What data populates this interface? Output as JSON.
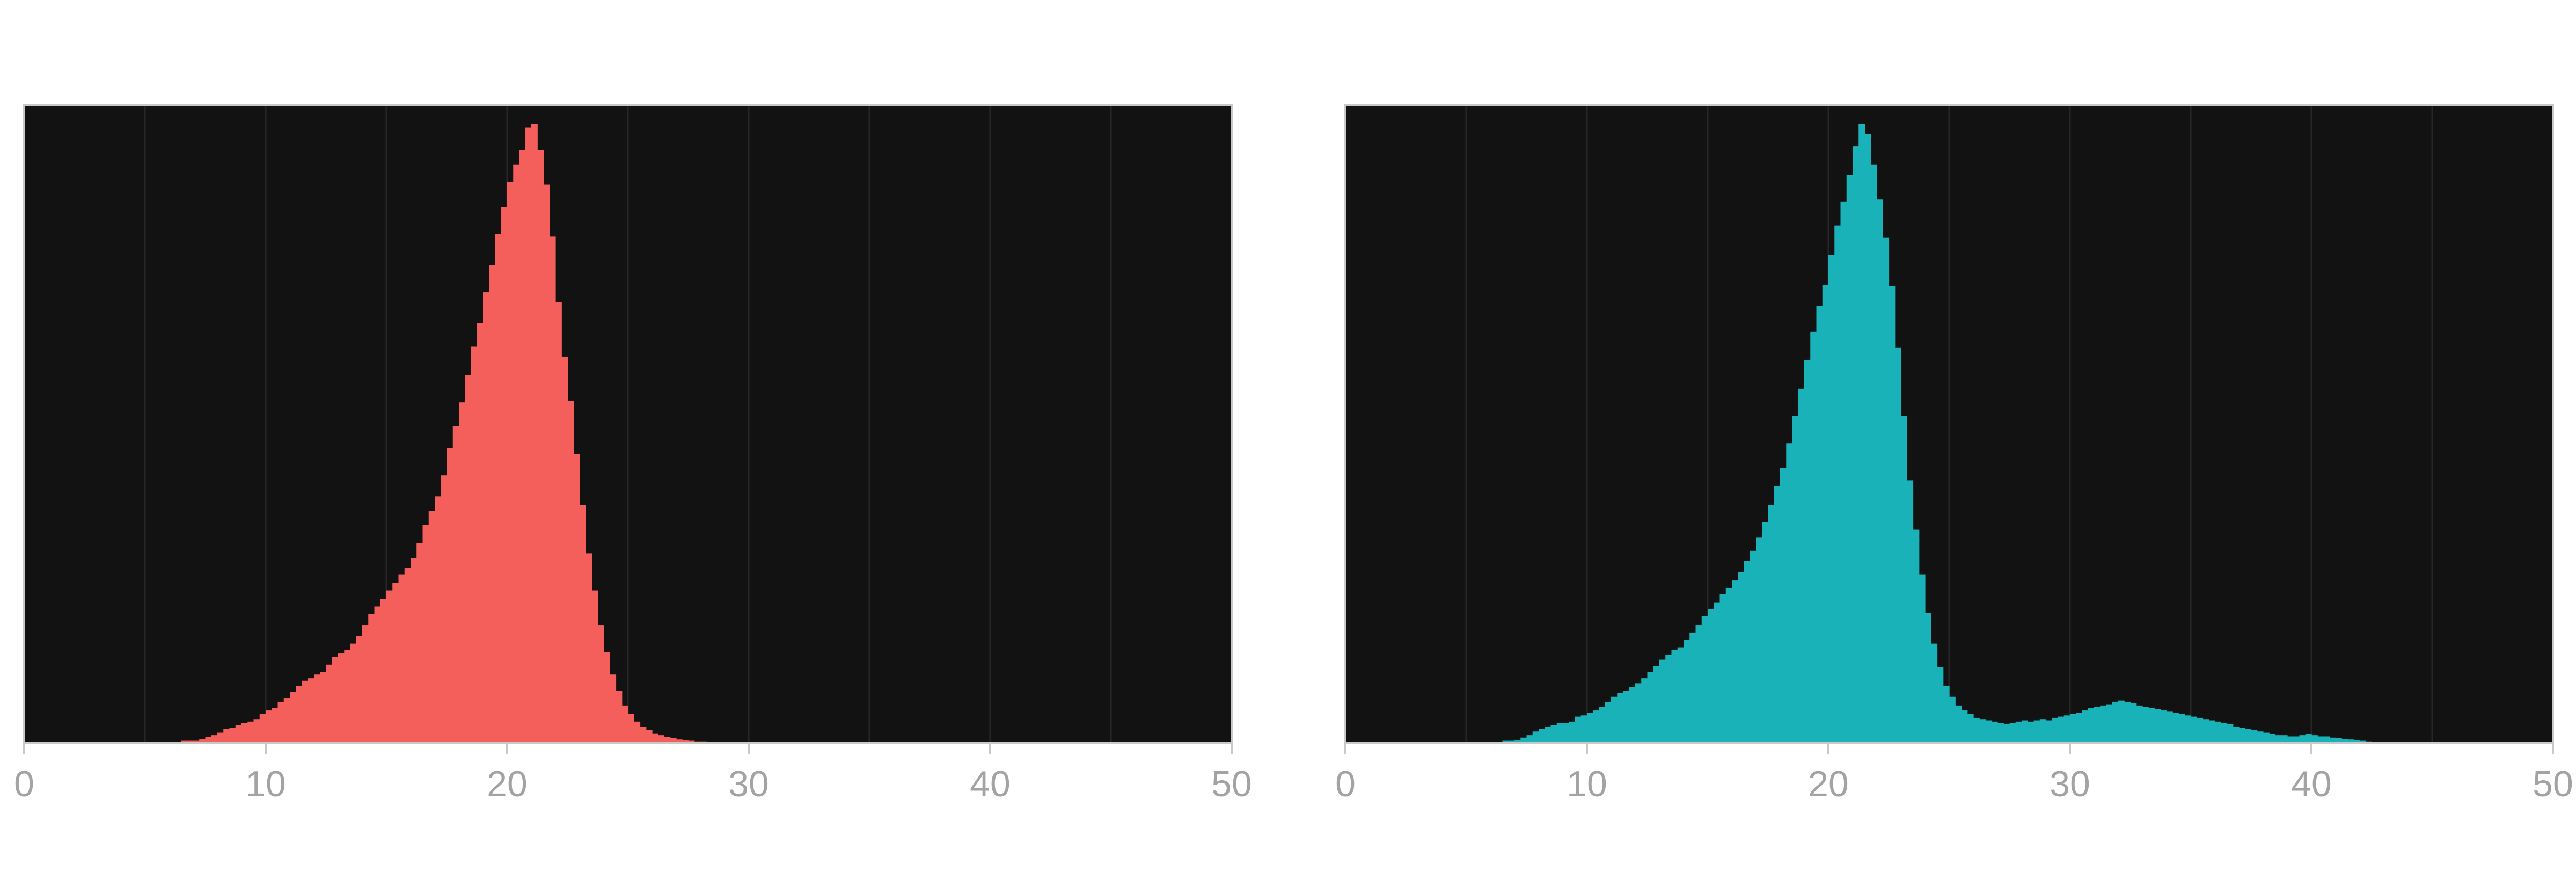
{
  "colors": {
    "panel_background": "#121212",
    "panel_border": "#c9c9c9",
    "grid": "#262626",
    "tick_label": "#a3a3a3",
    "figure_background": "#ffffff"
  },
  "chart_data": [
    {
      "type": "histogram",
      "color": "#f45f5c",
      "xlim": [
        0,
        50
      ],
      "x_ticks": [
        "0",
        "10",
        "20",
        "30",
        "40",
        "50"
      ],
      "grid": "vertical lines every 5",
      "bin_width": 0.25,
      "max_count": 1.0,
      "bins": [
        [
          6.5,
          0.003
        ],
        [
          6.75,
          0.003
        ],
        [
          7.0,
          0.003
        ],
        [
          7.25,
          0.006
        ],
        [
          7.5,
          0.009
        ],
        [
          7.75,
          0.012
        ],
        [
          8.0,
          0.016
        ],
        [
          8.25,
          0.022
        ],
        [
          8.5,
          0.024
        ],
        [
          8.75,
          0.028
        ],
        [
          9.0,
          0.032
        ],
        [
          9.25,
          0.034
        ],
        [
          9.5,
          0.038
        ],
        [
          9.75,
          0.046
        ],
        [
          10.0,
          0.052
        ],
        [
          10.25,
          0.056
        ],
        [
          10.5,
          0.066
        ],
        [
          10.75,
          0.072
        ],
        [
          11.0,
          0.082
        ],
        [
          11.25,
          0.092
        ],
        [
          11.5,
          0.1
        ],
        [
          11.75,
          0.104
        ],
        [
          12.0,
          0.11
        ],
        [
          12.25,
          0.114
        ],
        [
          12.5,
          0.126
        ],
        [
          12.75,
          0.138
        ],
        [
          13.0,
          0.144
        ],
        [
          13.25,
          0.15
        ],
        [
          13.5,
          0.16
        ],
        [
          13.75,
          0.172
        ],
        [
          14.0,
          0.19
        ],
        [
          14.25,
          0.208
        ],
        [
          14.5,
          0.22
        ],
        [
          14.75,
          0.232
        ],
        [
          15.0,
          0.246
        ],
        [
          15.25,
          0.258
        ],
        [
          15.5,
          0.272
        ],
        [
          15.75,
          0.282
        ],
        [
          16.0,
          0.298
        ],
        [
          16.25,
          0.322
        ],
        [
          16.5,
          0.352
        ],
        [
          16.75,
          0.374
        ],
        [
          17.0,
          0.398
        ],
        [
          17.25,
          0.432
        ],
        [
          17.5,
          0.476
        ],
        [
          17.75,
          0.512
        ],
        [
          18.0,
          0.55
        ],
        [
          18.25,
          0.594
        ],
        [
          18.5,
          0.64
        ],
        [
          18.75,
          0.678
        ],
        [
          19.0,
          0.728
        ],
        [
          19.25,
          0.772
        ],
        [
          19.5,
          0.822
        ],
        [
          19.75,
          0.866
        ],
        [
          20.0,
          0.906
        ],
        [
          20.25,
          0.934
        ],
        [
          20.5,
          0.958
        ],
        [
          20.75,
          0.994
        ],
        [
          21.0,
          1.0
        ],
        [
          21.25,
          0.958
        ],
        [
          21.5,
          0.902
        ],
        [
          21.75,
          0.818
        ],
        [
          22.0,
          0.712
        ],
        [
          22.25,
          0.624
        ],
        [
          22.5,
          0.552
        ],
        [
          22.75,
          0.466
        ],
        [
          23.0,
          0.384
        ],
        [
          23.25,
          0.306
        ],
        [
          23.5,
          0.246
        ],
        [
          23.75,
          0.19
        ],
        [
          24.0,
          0.146
        ],
        [
          24.25,
          0.11
        ],
        [
          24.5,
          0.084
        ],
        [
          24.75,
          0.06
        ],
        [
          25.0,
          0.046
        ],
        [
          25.25,
          0.034
        ],
        [
          25.5,
          0.026
        ],
        [
          25.75,
          0.02
        ],
        [
          26.0,
          0.015
        ],
        [
          26.25,
          0.012
        ],
        [
          26.5,
          0.009
        ],
        [
          26.75,
          0.007
        ],
        [
          27.0,
          0.005
        ],
        [
          27.25,
          0.004
        ],
        [
          27.5,
          0.003
        ],
        [
          27.75,
          0.002
        ],
        [
          28.0,
          0.002
        ],
        [
          28.25,
          0.001
        ],
        [
          28.5,
          0.001
        ]
      ]
    },
    {
      "type": "histogram",
      "color": "#19b2b8",
      "xlim": [
        0,
        50
      ],
      "x_ticks": [
        "0",
        "10",
        "20",
        "30",
        "40",
        "50"
      ],
      "grid": "vertical lines every 5",
      "bin_width": 0.25,
      "max_count": 1.0,
      "bins": [
        [
          6.5,
          0.003
        ],
        [
          6.75,
          0.003
        ],
        [
          7.0,
          0.004
        ],
        [
          7.25,
          0.008
        ],
        [
          7.5,
          0.012
        ],
        [
          7.75,
          0.018
        ],
        [
          8.0,
          0.022
        ],
        [
          8.25,
          0.026
        ],
        [
          8.5,
          0.028
        ],
        [
          8.75,
          0.032
        ],
        [
          9.0,
          0.032
        ],
        [
          9.25,
          0.034
        ],
        [
          9.5,
          0.042
        ],
        [
          9.75,
          0.044
        ],
        [
          10.0,
          0.048
        ],
        [
          10.25,
          0.052
        ],
        [
          10.5,
          0.058
        ],
        [
          10.75,
          0.066
        ],
        [
          11.0,
          0.074
        ],
        [
          11.25,
          0.08
        ],
        [
          11.5,
          0.084
        ],
        [
          11.75,
          0.09
        ],
        [
          12.0,
          0.096
        ],
        [
          12.25,
          0.104
        ],
        [
          12.5,
          0.114
        ],
        [
          12.75,
          0.124
        ],
        [
          13.0,
          0.134
        ],
        [
          13.25,
          0.142
        ],
        [
          13.5,
          0.15
        ],
        [
          13.75,
          0.154
        ],
        [
          14.0,
          0.166
        ],
        [
          14.25,
          0.178
        ],
        [
          14.5,
          0.19
        ],
        [
          14.75,
          0.204
        ],
        [
          15.0,
          0.216
        ],
        [
          15.25,
          0.226
        ],
        [
          15.5,
          0.24
        ],
        [
          15.75,
          0.25
        ],
        [
          16.0,
          0.262
        ],
        [
          16.25,
          0.276
        ],
        [
          16.5,
          0.294
        ],
        [
          16.75,
          0.31
        ],
        [
          17.0,
          0.332
        ],
        [
          17.25,
          0.356
        ],
        [
          17.5,
          0.384
        ],
        [
          17.75,
          0.414
        ],
        [
          18.0,
          0.444
        ],
        [
          18.25,
          0.484
        ],
        [
          18.5,
          0.528
        ],
        [
          18.75,
          0.572
        ],
        [
          19.0,
          0.618
        ],
        [
          19.25,
          0.664
        ],
        [
          19.5,
          0.706
        ],
        [
          19.75,
          0.74
        ],
        [
          20.0,
          0.788
        ],
        [
          20.25,
          0.836
        ],
        [
          20.5,
          0.874
        ],
        [
          20.75,
          0.918
        ],
        [
          21.0,
          0.964
        ],
        [
          21.25,
          1.0
        ],
        [
          21.5,
          0.984
        ],
        [
          21.75,
          0.934
        ],
        [
          22.0,
          0.878
        ],
        [
          22.25,
          0.816
        ],
        [
          22.5,
          0.738
        ],
        [
          22.75,
          0.638
        ],
        [
          23.0,
          0.528
        ],
        [
          23.25,
          0.424
        ],
        [
          23.5,
          0.344
        ],
        [
          23.75,
          0.272
        ],
        [
          24.0,
          0.21
        ],
        [
          24.25,
          0.16
        ],
        [
          24.5,
          0.122
        ],
        [
          24.75,
          0.092
        ],
        [
          25.0,
          0.074
        ],
        [
          25.25,
          0.06
        ],
        [
          25.5,
          0.052
        ],
        [
          25.75,
          0.046
        ],
        [
          26.0,
          0.04
        ],
        [
          26.25,
          0.038
        ],
        [
          26.5,
          0.036
        ],
        [
          26.75,
          0.034
        ],
        [
          27.0,
          0.032
        ],
        [
          27.25,
          0.03
        ],
        [
          27.5,
          0.032
        ],
        [
          27.75,
          0.034
        ],
        [
          28.0,
          0.036
        ],
        [
          28.25,
          0.034
        ],
        [
          28.5,
          0.036
        ],
        [
          28.75,
          0.038
        ],
        [
          29.0,
          0.036
        ],
        [
          29.25,
          0.04
        ],
        [
          29.5,
          0.042
        ],
        [
          29.75,
          0.044
        ],
        [
          30.0,
          0.046
        ],
        [
          30.25,
          0.048
        ],
        [
          30.5,
          0.052
        ],
        [
          30.75,
          0.056
        ],
        [
          31.0,
          0.058
        ],
        [
          31.25,
          0.06
        ],
        [
          31.5,
          0.062
        ],
        [
          31.75,
          0.066
        ],
        [
          32.0,
          0.068
        ],
        [
          32.25,
          0.066
        ],
        [
          32.5,
          0.064
        ],
        [
          32.75,
          0.06
        ],
        [
          33.0,
          0.058
        ],
        [
          33.25,
          0.056
        ],
        [
          33.5,
          0.054
        ],
        [
          33.75,
          0.052
        ],
        [
          34.0,
          0.05
        ],
        [
          34.25,
          0.048
        ],
        [
          34.5,
          0.046
        ],
        [
          34.75,
          0.044
        ],
        [
          35.0,
          0.042
        ],
        [
          35.25,
          0.04
        ],
        [
          35.5,
          0.038
        ],
        [
          35.75,
          0.036
        ],
        [
          36.0,
          0.034
        ],
        [
          36.25,
          0.032
        ],
        [
          36.5,
          0.03
        ],
        [
          36.75,
          0.026
        ],
        [
          37.0,
          0.024
        ],
        [
          37.25,
          0.022
        ],
        [
          37.5,
          0.02
        ],
        [
          37.75,
          0.018
        ],
        [
          38.0,
          0.016
        ],
        [
          38.25,
          0.014
        ],
        [
          38.5,
          0.012
        ],
        [
          38.75,
          0.012
        ],
        [
          39.0,
          0.01
        ],
        [
          39.25,
          0.01
        ],
        [
          39.5,
          0.012
        ],
        [
          39.75,
          0.014
        ],
        [
          40.0,
          0.012
        ],
        [
          40.25,
          0.01
        ],
        [
          40.5,
          0.01
        ],
        [
          40.75,
          0.008
        ],
        [
          41.0,
          0.007
        ],
        [
          41.25,
          0.006
        ],
        [
          41.5,
          0.005
        ],
        [
          41.75,
          0.004
        ],
        [
          42.0,
          0.003
        ],
        [
          42.25,
          0.002
        ],
        [
          42.5,
          0.001
        ]
      ]
    }
  ]
}
